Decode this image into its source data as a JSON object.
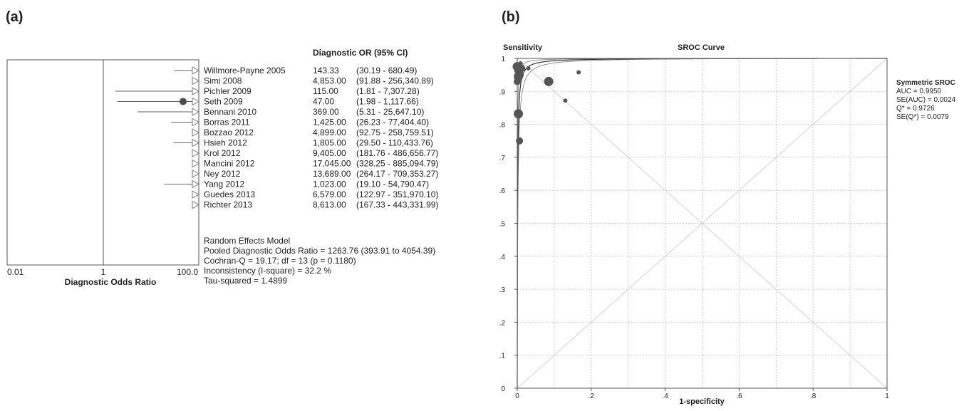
{
  "panels": {
    "a": {
      "label": "(a)"
    },
    "b": {
      "label": "(b)"
    }
  },
  "forest": {
    "header": "Diagnostic OR (95% CI)",
    "axis_ticks": [
      "0.01",
      "1",
      "100.0"
    ],
    "xlabel": "Diagnostic Odds Ratio",
    "studies": [
      {
        "name": "Willmore-Payne 2005",
        "or": 143.33,
        "lo": 30.19,
        "hi": 680.49,
        "or_text": "143.33",
        "ci_text": "(30.19 - 680.49)"
      },
      {
        "name": "Simi 2008",
        "or": 4853.0,
        "lo": 91.88,
        "hi": 256340.89,
        "or_text": "4,853.00",
        "ci_text": "(91.88 - 256,340.89)"
      },
      {
        "name": "Pichler 2009",
        "or": 115.0,
        "lo": 1.81,
        "hi": 7307.28,
        "or_text": "115.00",
        "ci_text": "(1.81 - 7,307.28)"
      },
      {
        "name": "Seth 2009",
        "or": 47.0,
        "lo": 1.98,
        "hi": 1117.66,
        "or_text": "47.00",
        "ci_text": "(1.98 - 1,117.66)"
      },
      {
        "name": "Bennani 2010",
        "or": 369.0,
        "lo": 5.31,
        "hi": 25647.1,
        "or_text": "369.00",
        "ci_text": "(5.31 - 25,647.10)"
      },
      {
        "name": "Borras 2011",
        "or": 1425.0,
        "lo": 26.23,
        "hi": 77404.4,
        "or_text": "1,425.00",
        "ci_text": "(26.23 - 77,404.40)"
      },
      {
        "name": "Bozzao 2012",
        "or": 4899.0,
        "lo": 92.75,
        "hi": 258759.51,
        "or_text": "4,899.00",
        "ci_text": "(92.75 - 258,759.51)"
      },
      {
        "name": "Hsieh 2012",
        "or": 1805.0,
        "lo": 29.5,
        "hi": 110433.76,
        "or_text": "1,805.00",
        "ci_text": "(29.50 - 110,433.76)"
      },
      {
        "name": "Krol 2012",
        "or": 9405.0,
        "lo": 181.76,
        "hi": 486656.77,
        "or_text": "9,405.00",
        "ci_text": "(181.76 - 486,656.77)"
      },
      {
        "name": "Mancini 2012",
        "or": 17045.0,
        "lo": 328.25,
        "hi": 885094.79,
        "or_text": "17,045.00",
        "ci_text": "(328.25 - 885,094.79)"
      },
      {
        "name": "Ney 2012",
        "or": 13689.0,
        "lo": 264.17,
        "hi": 709353.27,
        "or_text": "13,689.00",
        "ci_text": "(264.17 - 709,353.27)"
      },
      {
        "name": "Yang 2012",
        "or": 1023.0,
        "lo": 19.1,
        "hi": 54790.47,
        "or_text": "1,023.00",
        "ci_text": "(19.10 - 54,790.47)"
      },
      {
        "name": "Guedes 2013",
        "or": 6579.0,
        "lo": 122.97,
        "hi": 351970.1,
        "or_text": "6,579.00",
        "ci_text": "(122.97 - 351,970.10)"
      },
      {
        "name": "Richter 2013",
        "or": 8613.0,
        "lo": 167.33,
        "hi": 443331.99,
        "or_text": "8,613.00",
        "ci_text": "(167.33 - 443,331.99)"
      }
    ],
    "summary": [
      "Random Effects Model",
      "Pooled Diagnostic Odds Ratio = 1263.76 (393.91 to 4054.39)",
      "Cochran-Q = 19.17; df =  13 (p = 0.1180)",
      "Inconsistency (I-square) = 32.2 %",
      "Tau-squared = 1.4899"
    ]
  },
  "sroc": {
    "title": "SROC Curve",
    "ylabel": "Sensitivity",
    "xlabel": "1-specificity",
    "xticks": [
      "0",
      ".2",
      ".4",
      ".6",
      ".8",
      "1"
    ],
    "yticks": [
      "0",
      ".1",
      ".2",
      ".3",
      ".4",
      ".5",
      ".6",
      ".7",
      ".8",
      ".9",
      "1"
    ],
    "stats": [
      "Symmetric SROC",
      "AUC = 0.9950",
      "SE(AUC) = 0.0024",
      "Q* = 0.9726",
      "SE(Q*) = 0.0079"
    ]
  },
  "chart_data": [
    {
      "type": "forest",
      "xlabel": "Diagnostic Odds Ratio",
      "xscale": "log",
      "xlim": [
        0.01,
        100
      ],
      "categories": [
        "Willmore-Payne 2005",
        "Simi 2008",
        "Pichler 2009",
        "Seth 2009",
        "Bennani 2010",
        "Borras 2011",
        "Bozzao 2012",
        "Hsieh 2012",
        "Krol 2012",
        "Mancini 2012",
        "Ney 2012",
        "Yang 2012",
        "Guedes 2013",
        "Richter 2013"
      ],
      "series": [
        {
          "name": "Diagnostic OR",
          "values": [
            143.33,
            4853.0,
            115.0,
            47.0,
            369.0,
            1425.0,
            4899.0,
            1805.0,
            9405.0,
            17045.0,
            13689.0,
            1023.0,
            6579.0,
            8613.0
          ]
        },
        {
          "name": "95% CI lower",
          "values": [
            30.19,
            91.88,
            1.81,
            1.98,
            5.31,
            26.23,
            92.75,
            29.5,
            181.76,
            328.25,
            264.17,
            19.1,
            122.97,
            167.33
          ]
        },
        {
          "name": "95% CI upper",
          "values": [
            680.49,
            256340.89,
            7307.28,
            1117.66,
            25647.1,
            77404.4,
            258759.51,
            110433.76,
            486656.77,
            885094.79,
            709353.27,
            54790.47,
            351970.1,
            443331.99
          ]
        }
      ]
    },
    {
      "type": "scatter",
      "title": "SROC Curve",
      "xlabel": "1-specificity",
      "ylabel": "Sensitivity",
      "xlim": [
        0,
        1
      ],
      "ylim": [
        0,
        1
      ],
      "grid": true,
      "points": [
        {
          "x": 0.0,
          "y": 0.975,
          "size": "large"
        },
        {
          "x": 0.004,
          "y": 0.965,
          "size": "large"
        },
        {
          "x": 0.009,
          "y": 0.985,
          "size": "small"
        },
        {
          "x": 0.012,
          "y": 0.97,
          "size": "medium"
        },
        {
          "x": 0.003,
          "y": 0.945,
          "size": "large"
        },
        {
          "x": 0.008,
          "y": 0.95,
          "size": "medium"
        },
        {
          "x": 0.0,
          "y": 0.93,
          "size": "medium"
        },
        {
          "x": 0.03,
          "y": 0.97,
          "size": "small"
        },
        {
          "x": 0.085,
          "y": 0.93,
          "size": "large"
        },
        {
          "x": 0.13,
          "y": 0.872,
          "size": "small"
        },
        {
          "x": 0.166,
          "y": 0.958,
          "size": "small"
        },
        {
          "x": 0.003,
          "y": 0.832,
          "size": "large"
        },
        {
          "x": 0.006,
          "y": 0.75,
          "size": "medium"
        }
      ],
      "curves": [
        {
          "name": "SROC",
          "Q": 0.9726
        },
        {
          "name": "CI",
          "Q": 0.962
        },
        {
          "name": "CI",
          "Q": 0.983
        }
      ]
    }
  ]
}
